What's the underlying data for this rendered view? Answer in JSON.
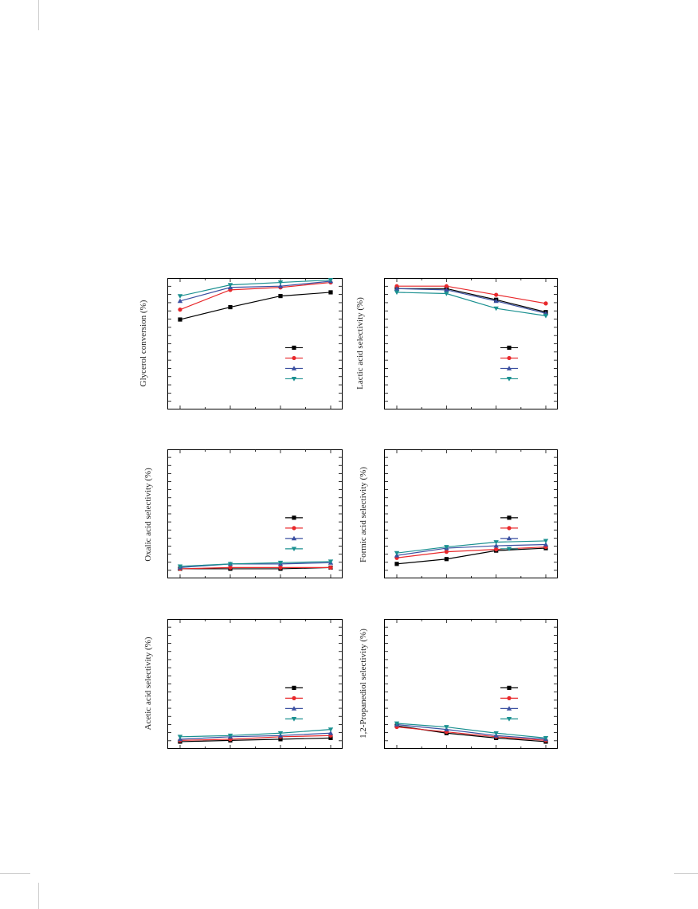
{
  "colors": {
    "series": [
      "#000000",
      "#e8282b",
      "#3a4fa0",
      "#1a9090"
    ],
    "axis": "#000000",
    "background": "#ffffff"
  },
  "chart_data": [
    {
      "type": "line",
      "ylabel": "Glycerol conversion (%)",
      "ylim": [
        0,
        100
      ],
      "x": [
        1,
        2,
        3,
        4
      ],
      "legend_position": "center-right",
      "series": [
        {
          "marker": "square",
          "values": [
            69,
            79,
            88,
            91
          ]
        },
        {
          "marker": "circle",
          "values": [
            77,
            93,
            95,
            99
          ]
        },
        {
          "marker": "triangle-up",
          "values": [
            84,
            95,
            96,
            100
          ]
        },
        {
          "marker": "triangle-down",
          "values": [
            88,
            97,
            99,
            101
          ]
        }
      ]
    },
    {
      "type": "line",
      "ylabel": "Lactic acid selectivity (%)",
      "ylim": [
        0,
        100
      ],
      "x": [
        1,
        2,
        3,
        4
      ],
      "legend_position": "center-right",
      "series": [
        {
          "marker": "square",
          "values": [
            94,
            94,
            85,
            75
          ]
        },
        {
          "marker": "circle",
          "values": [
            96,
            96,
            89,
            82
          ]
        },
        {
          "marker": "triangle-up",
          "values": [
            94,
            93,
            84,
            74
          ]
        },
        {
          "marker": "triangle-down",
          "values": [
            91,
            90,
            78,
            72
          ]
        }
      ]
    },
    {
      "type": "line",
      "ylabel": "Oxalic acid selectivity (%)",
      "ylim": [
        0,
        100
      ],
      "x": [
        1,
        2,
        3,
        4
      ],
      "legend_position": "center-right",
      "series": [
        {
          "marker": "square",
          "values": [
            4,
            4,
            4,
            5
          ]
        },
        {
          "marker": "circle",
          "values": [
            4,
            5,
            5,
            5
          ]
        },
        {
          "marker": "triangle-up",
          "values": [
            5,
            8,
            8,
            9
          ]
        },
        {
          "marker": "triangle-down",
          "values": [
            6,
            8,
            9,
            10
          ]
        }
      ]
    },
    {
      "type": "line",
      "ylabel": "Formic acid selectivity (%)",
      "ylim": [
        0,
        100
      ],
      "x": [
        1,
        2,
        3,
        4
      ],
      "legend_position": "center-right",
      "series": [
        {
          "marker": "square",
          "values": [
            8,
            12,
            19,
            21
          ]
        },
        {
          "marker": "circle",
          "values": [
            13,
            18,
            20,
            22
          ]
        },
        {
          "marker": "triangle-up",
          "values": [
            15,
            21,
            23,
            24
          ]
        },
        {
          "marker": "triangle-down",
          "values": [
            17,
            22,
            26,
            27
          ]
        }
      ]
    },
    {
      "type": "line",
      "ylabel": "Acetic acid selectivity (%)",
      "ylim": [
        0,
        100
      ],
      "x": [
        1,
        2,
        3,
        4
      ],
      "legend_position": "center-right",
      "series": [
        {
          "marker": "square",
          "values": [
            2,
            3,
            4,
            5
          ]
        },
        {
          "marker": "circle",
          "values": [
            3,
            4,
            6,
            7
          ]
        },
        {
          "marker": "triangle-up",
          "values": [
            4,
            6,
            7,
            9
          ]
        },
        {
          "marker": "triangle-down",
          "values": [
            6,
            7,
            9,
            12
          ]
        }
      ]
    },
    {
      "type": "line",
      "ylabel": "1,2-Propanediol selectivity (%)",
      "ylim": [
        0,
        100
      ],
      "x": [
        1,
        2,
        3,
        4
      ],
      "legend_position": "center-right",
      "series": [
        {
          "marker": "square",
          "values": [
            15,
            9,
            5,
            2
          ]
        },
        {
          "marker": "circle",
          "values": [
            14,
            10,
            6,
            3
          ]
        },
        {
          "marker": "triangle-up",
          "values": [
            16,
            12,
            7,
            4
          ]
        },
        {
          "marker": "triangle-down",
          "values": [
            17,
            14,
            9,
            5
          ]
        }
      ]
    }
  ]
}
